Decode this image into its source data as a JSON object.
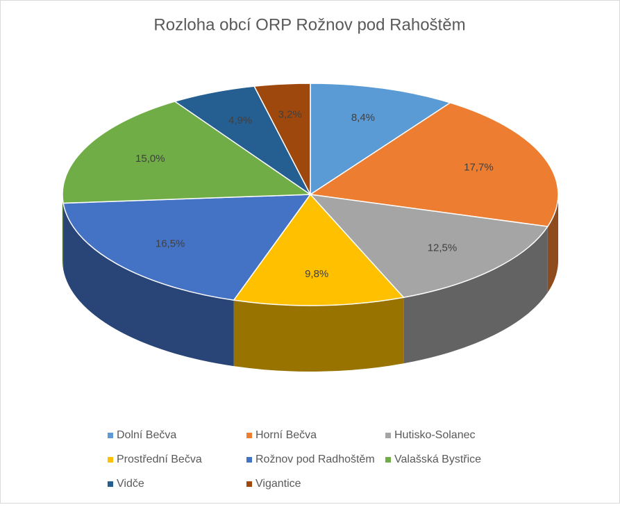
{
  "chart_data": {
    "type": "pie3d",
    "title": "Rozloha obcí ORP Rožnov pod Rahoštěm",
    "categories": [
      "Dolní Bečva",
      "Horní Bečva",
      "Hutisko-Solanec",
      "Prostřední Bečva",
      "Rožnov pod Radhoštěm",
      "Valašská Bystřice",
      "Vidče",
      "Vigantice"
    ],
    "values": [
      8.4,
      17.7,
      12.5,
      9.8,
      16.5,
      15.0,
      4.9,
      3.2
    ],
    "value_labels": [
      "8,4%",
      "17,7%",
      "12,5%",
      "9,8%",
      "16,5%",
      "15,0%",
      "4,9%",
      "3,2%"
    ],
    "colors": [
      "#5b9bd5",
      "#ed7d31",
      "#a5a5a5",
      "#ffc000",
      "#4472c4",
      "#70ad47",
      "#255e91",
      "#9e480e"
    ],
    "legend": "bottom"
  }
}
